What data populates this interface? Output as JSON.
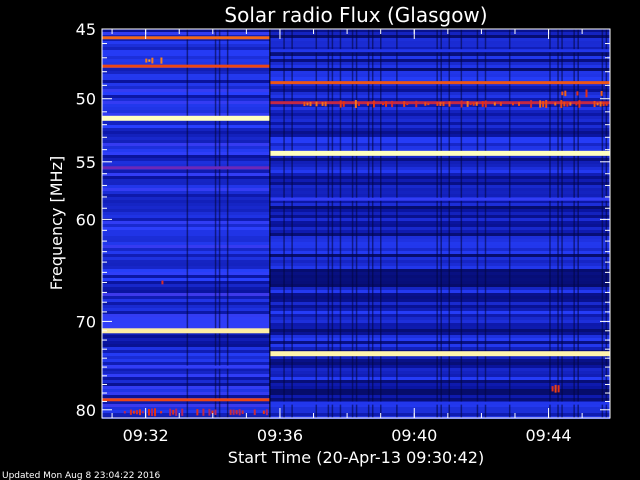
{
  "chart_data": {
    "type": "heatmap",
    "title": "Solar radio Flux (Glasgow)",
    "xlabel": "Start Time (20-Apr-13 09:30:42)",
    "ylabel": "Frequency [MHz]",
    "footer": "Updated Mon Aug  8 23:04:22 2016",
    "x_start": "09:30:42",
    "x_end": "09:45:50",
    "xlim_minutes": [
      0,
      15.13
    ],
    "x_ticks": [
      {
        "label": "09:32",
        "minutes": 1.3
      },
      {
        "label": "09:36",
        "minutes": 5.3
      },
      {
        "label": "09:40",
        "minutes": 9.3
      },
      {
        "label": "09:44",
        "minutes": 13.3
      }
    ],
    "y_scale": "log",
    "ylim": [
      45,
      81
    ],
    "y_ticks": [
      45,
      50,
      55,
      60,
      70,
      80
    ],
    "colormap": [
      "#000018",
      "#0a14a0",
      "#2840ff",
      "#8a1e9a",
      "#e83010",
      "#ffa020",
      "#ffffc0"
    ],
    "segment_break_minutes": 5.0,
    "bright_bands": [
      {
        "freq": 45.6,
        "start": 0,
        "end": 5.0,
        "level": 0.75
      },
      {
        "freq": 47.6,
        "start": 0,
        "end": 5.0,
        "level": 0.7
      },
      {
        "freq": 51.5,
        "start": 0,
        "end": 5.0,
        "level": 1.0
      },
      {
        "freq": 55.5,
        "start": 0,
        "end": 5.0,
        "level": 0.45
      },
      {
        "freq": 71.0,
        "start": 0,
        "end": 5.0,
        "level": 0.97
      },
      {
        "freq": 75.0,
        "start": 0,
        "end": 5.0,
        "level": 0.35
      },
      {
        "freq": 78.8,
        "start": 0,
        "end": 5.0,
        "level": 0.7
      },
      {
        "freq": 46.5,
        "start": 5.0,
        "end": 15.13,
        "level": 0.3
      },
      {
        "freq": 48.8,
        "start": 5.0,
        "end": 15.13,
        "level": 0.72
      },
      {
        "freq": 50.3,
        "start": 5.0,
        "end": 15.13,
        "level": 0.6
      },
      {
        "freq": 54.3,
        "start": 5.0,
        "end": 15.13,
        "level": 1.0
      },
      {
        "freq": 58.2,
        "start": 5.0,
        "end": 15.13,
        "level": 0.35
      },
      {
        "freq": 73.5,
        "start": 5.0,
        "end": 15.13,
        "level": 0.98
      },
      {
        "freq": 79.2,
        "start": 5.0,
        "end": 15.13,
        "level": 0.3
      }
    ],
    "bursts": [
      {
        "freq": 47.2,
        "start": 1.2,
        "end": 2.0,
        "level": 0.85
      },
      {
        "freq": 80.3,
        "start": 0.2,
        "end": 5.0,
        "level": 0.7
      },
      {
        "freq": 50.4,
        "start": 6.0,
        "end": 15.13,
        "level": 0.78
      },
      {
        "freq": 49.6,
        "start": 13.5,
        "end": 15.0,
        "level": 0.8
      },
      {
        "freq": 66.0,
        "start": 1.5,
        "end": 1.8,
        "level": 0.75
      },
      {
        "freq": 77.5,
        "start": 13.3,
        "end": 13.7,
        "level": 0.8
      }
    ]
  }
}
